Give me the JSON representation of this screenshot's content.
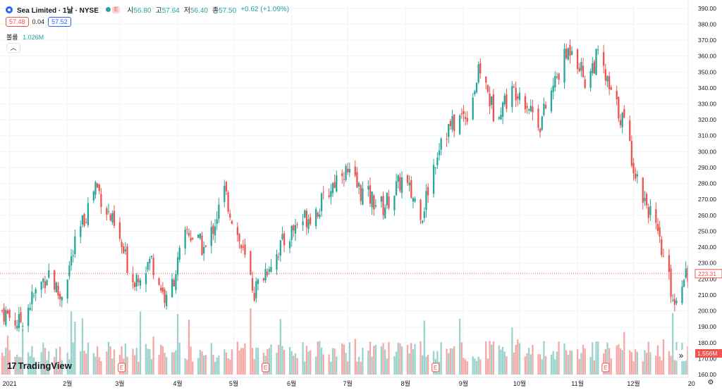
{
  "header": {
    "title": "Sea Limited · 1날 · NYSE",
    "toggle_label": "E",
    "open_label": "시",
    "open": "56.80",
    "high_label": "고",
    "high": "57.64",
    "low_label": "저",
    "low": "56.40",
    "close_label": "종",
    "close": "57.50",
    "change": "+0.62 (+1.09%)"
  },
  "trade": {
    "bid": "57.48",
    "spread": "0.04",
    "ask": "57.52"
  },
  "volume": {
    "label": "볼륨",
    "value": "1.026M"
  },
  "collapse_icon": "chevron-up-icon",
  "brand": {
    "name": "TradingView",
    "mark": "17"
  },
  "scroll_icon": "double-chevron-right-icon",
  "settings_icon": "gear-icon",
  "colors": {
    "up": "#26a69a",
    "down": "#ef5350",
    "up_vol": "#9ad3cc",
    "down_vol": "#f6a8a6",
    "grid": "#f0f3fa",
    "axis_text": "#131722"
  },
  "chart_data": {
    "type": "candlestick",
    "symbol": "SE",
    "ylim": [
      160,
      393
    ],
    "y_ticks": [
      390,
      380,
      370,
      360,
      350,
      340,
      330,
      320,
      310,
      300,
      290,
      280,
      270,
      260,
      250,
      240,
      230,
      220,
      210,
      200,
      190,
      180,
      170,
      160
    ],
    "y_tick_labels": [
      "390.00",
      "380.00",
      "370.00",
      "360.00",
      "350.00",
      "340.00",
      "330.00",
      "320.00",
      "310.00",
      "300.00",
      "290.00",
      "280.00",
      "270.00",
      "260.00",
      "250.00",
      "240.00",
      "230.00",
      "220.00",
      "210.00",
      "200.00",
      "190.00",
      "180.00",
      "170.00",
      "160.00"
    ],
    "x_labels": [
      {
        "label": "2021",
        "date": "2021-01-01"
      },
      {
        "label": "2월",
        "date": "2021-02-01"
      },
      {
        "label": "3월",
        "date": "2021-03-01"
      },
      {
        "label": "4월",
        "date": "2021-04-01"
      },
      {
        "label": "5월",
        "date": "2021-05-01"
      },
      {
        "label": "6월",
        "date": "2021-06-01"
      },
      {
        "label": "7월",
        "date": "2021-07-01"
      },
      {
        "label": "8월",
        "date": "2021-08-01"
      },
      {
        "label": "9월",
        "date": "2021-09-01"
      },
      {
        "label": "10월",
        "date": "2021-10-01"
      },
      {
        "label": "11월",
        "date": "2021-11-01"
      },
      {
        "label": "12월",
        "date": "2021-12-01"
      },
      {
        "label": "20",
        "date": "2022-01-01"
      }
    ],
    "trend_closes": [
      {
        "date": "2020-12-28",
        "close": 200
      },
      {
        "date": "2021-01-06",
        "close": 192
      },
      {
        "date": "2021-01-12",
        "close": 205
      },
      {
        "date": "2021-01-22",
        "close": 225
      },
      {
        "date": "2021-01-28",
        "close": 208
      },
      {
        "date": "2021-02-05",
        "close": 240
      },
      {
        "date": "2021-02-16",
        "close": 280
      },
      {
        "date": "2021-02-24",
        "close": 258
      },
      {
        "date": "2021-03-08",
        "close": 220
      },
      {
        "date": "2021-03-18",
        "close": 232
      },
      {
        "date": "2021-03-26",
        "close": 205
      },
      {
        "date": "2021-04-06",
        "close": 250
      },
      {
        "date": "2021-04-16",
        "close": 238
      },
      {
        "date": "2021-04-26",
        "close": 275
      },
      {
        "date": "2021-05-12",
        "close": 212
      },
      {
        "date": "2021-05-20",
        "close": 230
      },
      {
        "date": "2021-06-04",
        "close": 255
      },
      {
        "date": "2021-06-16",
        "close": 265
      },
      {
        "date": "2021-06-28",
        "close": 290
      },
      {
        "date": "2021-07-08",
        "close": 275
      },
      {
        "date": "2021-07-20",
        "close": 265
      },
      {
        "date": "2021-07-30",
        "close": 282
      },
      {
        "date": "2021-08-10",
        "close": 262
      },
      {
        "date": "2021-08-20",
        "close": 310
      },
      {
        "date": "2021-09-03",
        "close": 325
      },
      {
        "date": "2021-09-10",
        "close": 352
      },
      {
        "date": "2021-09-17",
        "close": 325
      },
      {
        "date": "2021-09-30",
        "close": 340
      },
      {
        "date": "2021-10-12",
        "close": 318
      },
      {
        "date": "2021-10-22",
        "close": 350
      },
      {
        "date": "2021-10-29",
        "close": 368
      },
      {
        "date": "2021-11-05",
        "close": 345
      },
      {
        "date": "2021-11-12",
        "close": 360
      },
      {
        "date": "2021-11-19",
        "close": 335
      },
      {
        "date": "2021-11-26",
        "close": 318
      },
      {
        "date": "2021-12-03",
        "close": 282
      },
      {
        "date": "2021-12-10",
        "close": 262
      },
      {
        "date": "2021-12-17",
        "close": 232
      },
      {
        "date": "2021-12-23",
        "close": 205
      },
      {
        "date": "2021-12-28",
        "close": 225
      },
      {
        "date": "2022-01-03",
        "close": 223.31
      }
    ],
    "volume_note": "daily volume histogram, colored by candle direction",
    "earnings_markers": [
      {
        "label": "E",
        "date": "2021-03-02"
      },
      {
        "label": "E",
        "date": "2021-05-18"
      },
      {
        "label": "E",
        "date": "2021-08-17"
      },
      {
        "label": "E",
        "date": "2021-11-16"
      }
    ],
    "last_price": {
      "value": 223.31,
      "label": "223.31"
    },
    "last_volume": {
      "label": "1.556M"
    }
  }
}
